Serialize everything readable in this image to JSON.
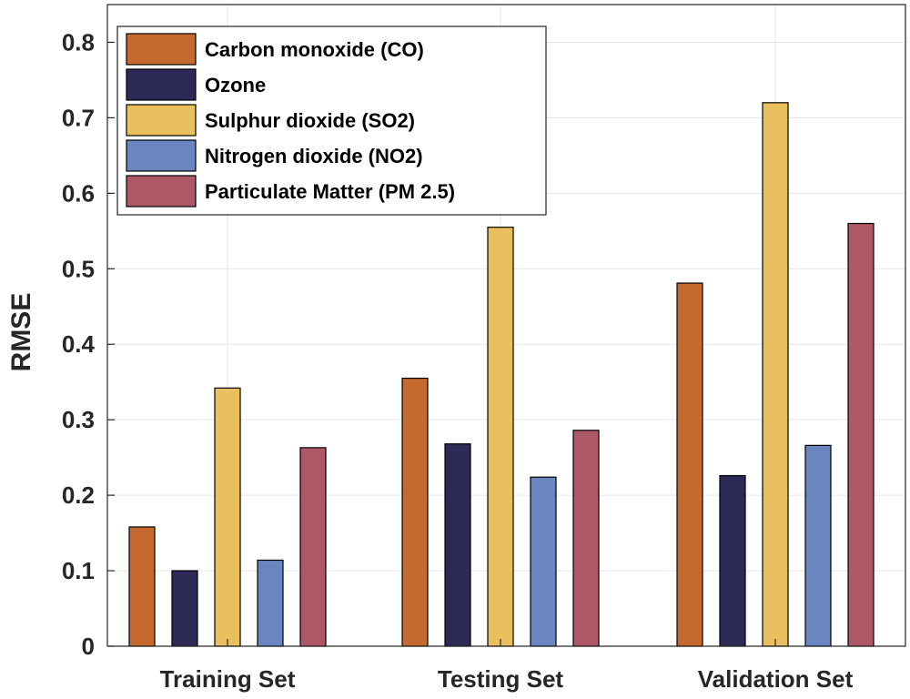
{
  "chart_data": {
    "type": "bar",
    "title": "",
    "xlabel": "",
    "ylabel": "RMSE",
    "ylim": [
      0,
      0.85
    ],
    "yticks": [
      0,
      0.1,
      0.2,
      0.3,
      0.4,
      0.5,
      0.6,
      0.7,
      0.8
    ],
    "ytick_labels": [
      "0",
      "0.1",
      "0.2",
      "0.3",
      "0.4",
      "0.5",
      "0.6",
      "0.7",
      "0.8"
    ],
    "grid": true,
    "legend_position": "top-left",
    "categories": [
      "Training Set",
      "Testing Set",
      "Validation Set"
    ],
    "series": [
      {
        "name": "Carbon monoxide (CO)",
        "color": "#C46A2E",
        "values": [
          0.158,
          0.355,
          0.481
        ]
      },
      {
        "name": "Ozone",
        "color": "#2E2A57",
        "values": [
          0.1,
          0.268,
          0.226
        ]
      },
      {
        "name": "Sulphur dioxide (SO2)",
        "color": "#E8C15E",
        "values": [
          0.342,
          0.555,
          0.72
        ]
      },
      {
        "name": "Nitrogen dioxide (NO2)",
        "color": "#6986C0",
        "values": [
          0.114,
          0.224,
          0.266
        ]
      },
      {
        "name": "Particulate Matter (PM 2.5)",
        "color": "#AE5767",
        "values": [
          0.263,
          0.286,
          0.56
        ]
      }
    ]
  }
}
